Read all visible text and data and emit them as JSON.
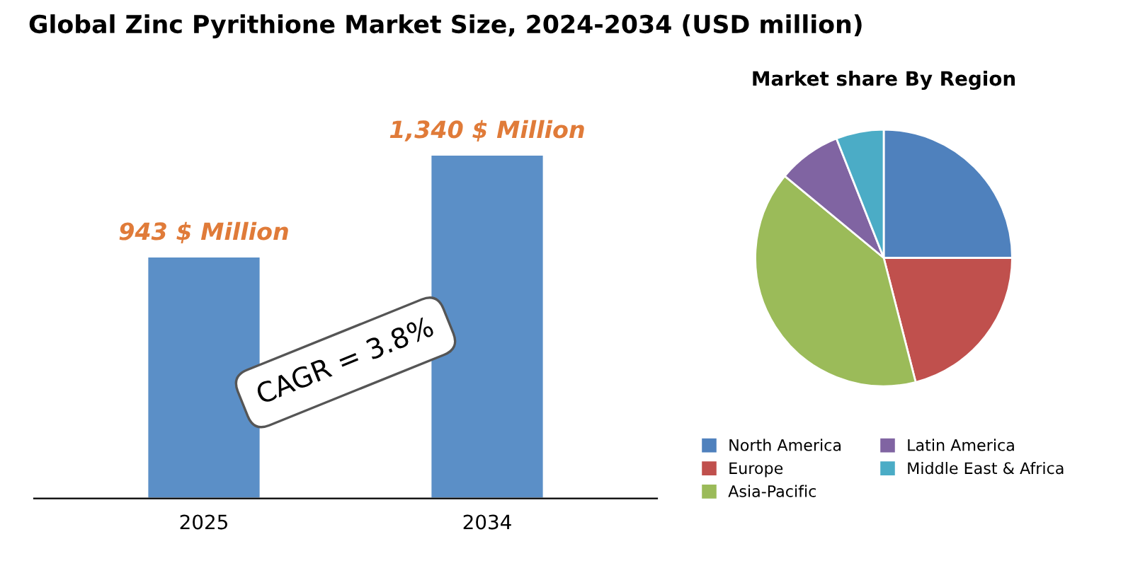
{
  "chart_data": [
    {
      "type": "bar",
      "title": "Global Zinc Pyrithione Market Size, 2024-2034 (USD million)",
      "categories": [
        "2025",
        "2034"
      ],
      "values": [
        943,
        1340
      ],
      "value_labels": [
        "943 $ Million",
        "1,340 $ Million"
      ],
      "color": "#5b8fc7",
      "annotations": [
        "CAGR = 3.8%"
      ]
    },
    {
      "type": "pie",
      "title": "Market share By Region",
      "categories": [
        "North America",
        "Europe",
        "Asia-Pacific",
        "Latin America",
        "Middle East & Africa"
      ],
      "values": [
        25,
        21,
        40,
        8,
        6
      ],
      "colors": [
        "#4f81bd",
        "#c0504d",
        "#9bbb59",
        "#8064a2",
        "#4bacc6"
      ],
      "legend": "bottom"
    }
  ]
}
